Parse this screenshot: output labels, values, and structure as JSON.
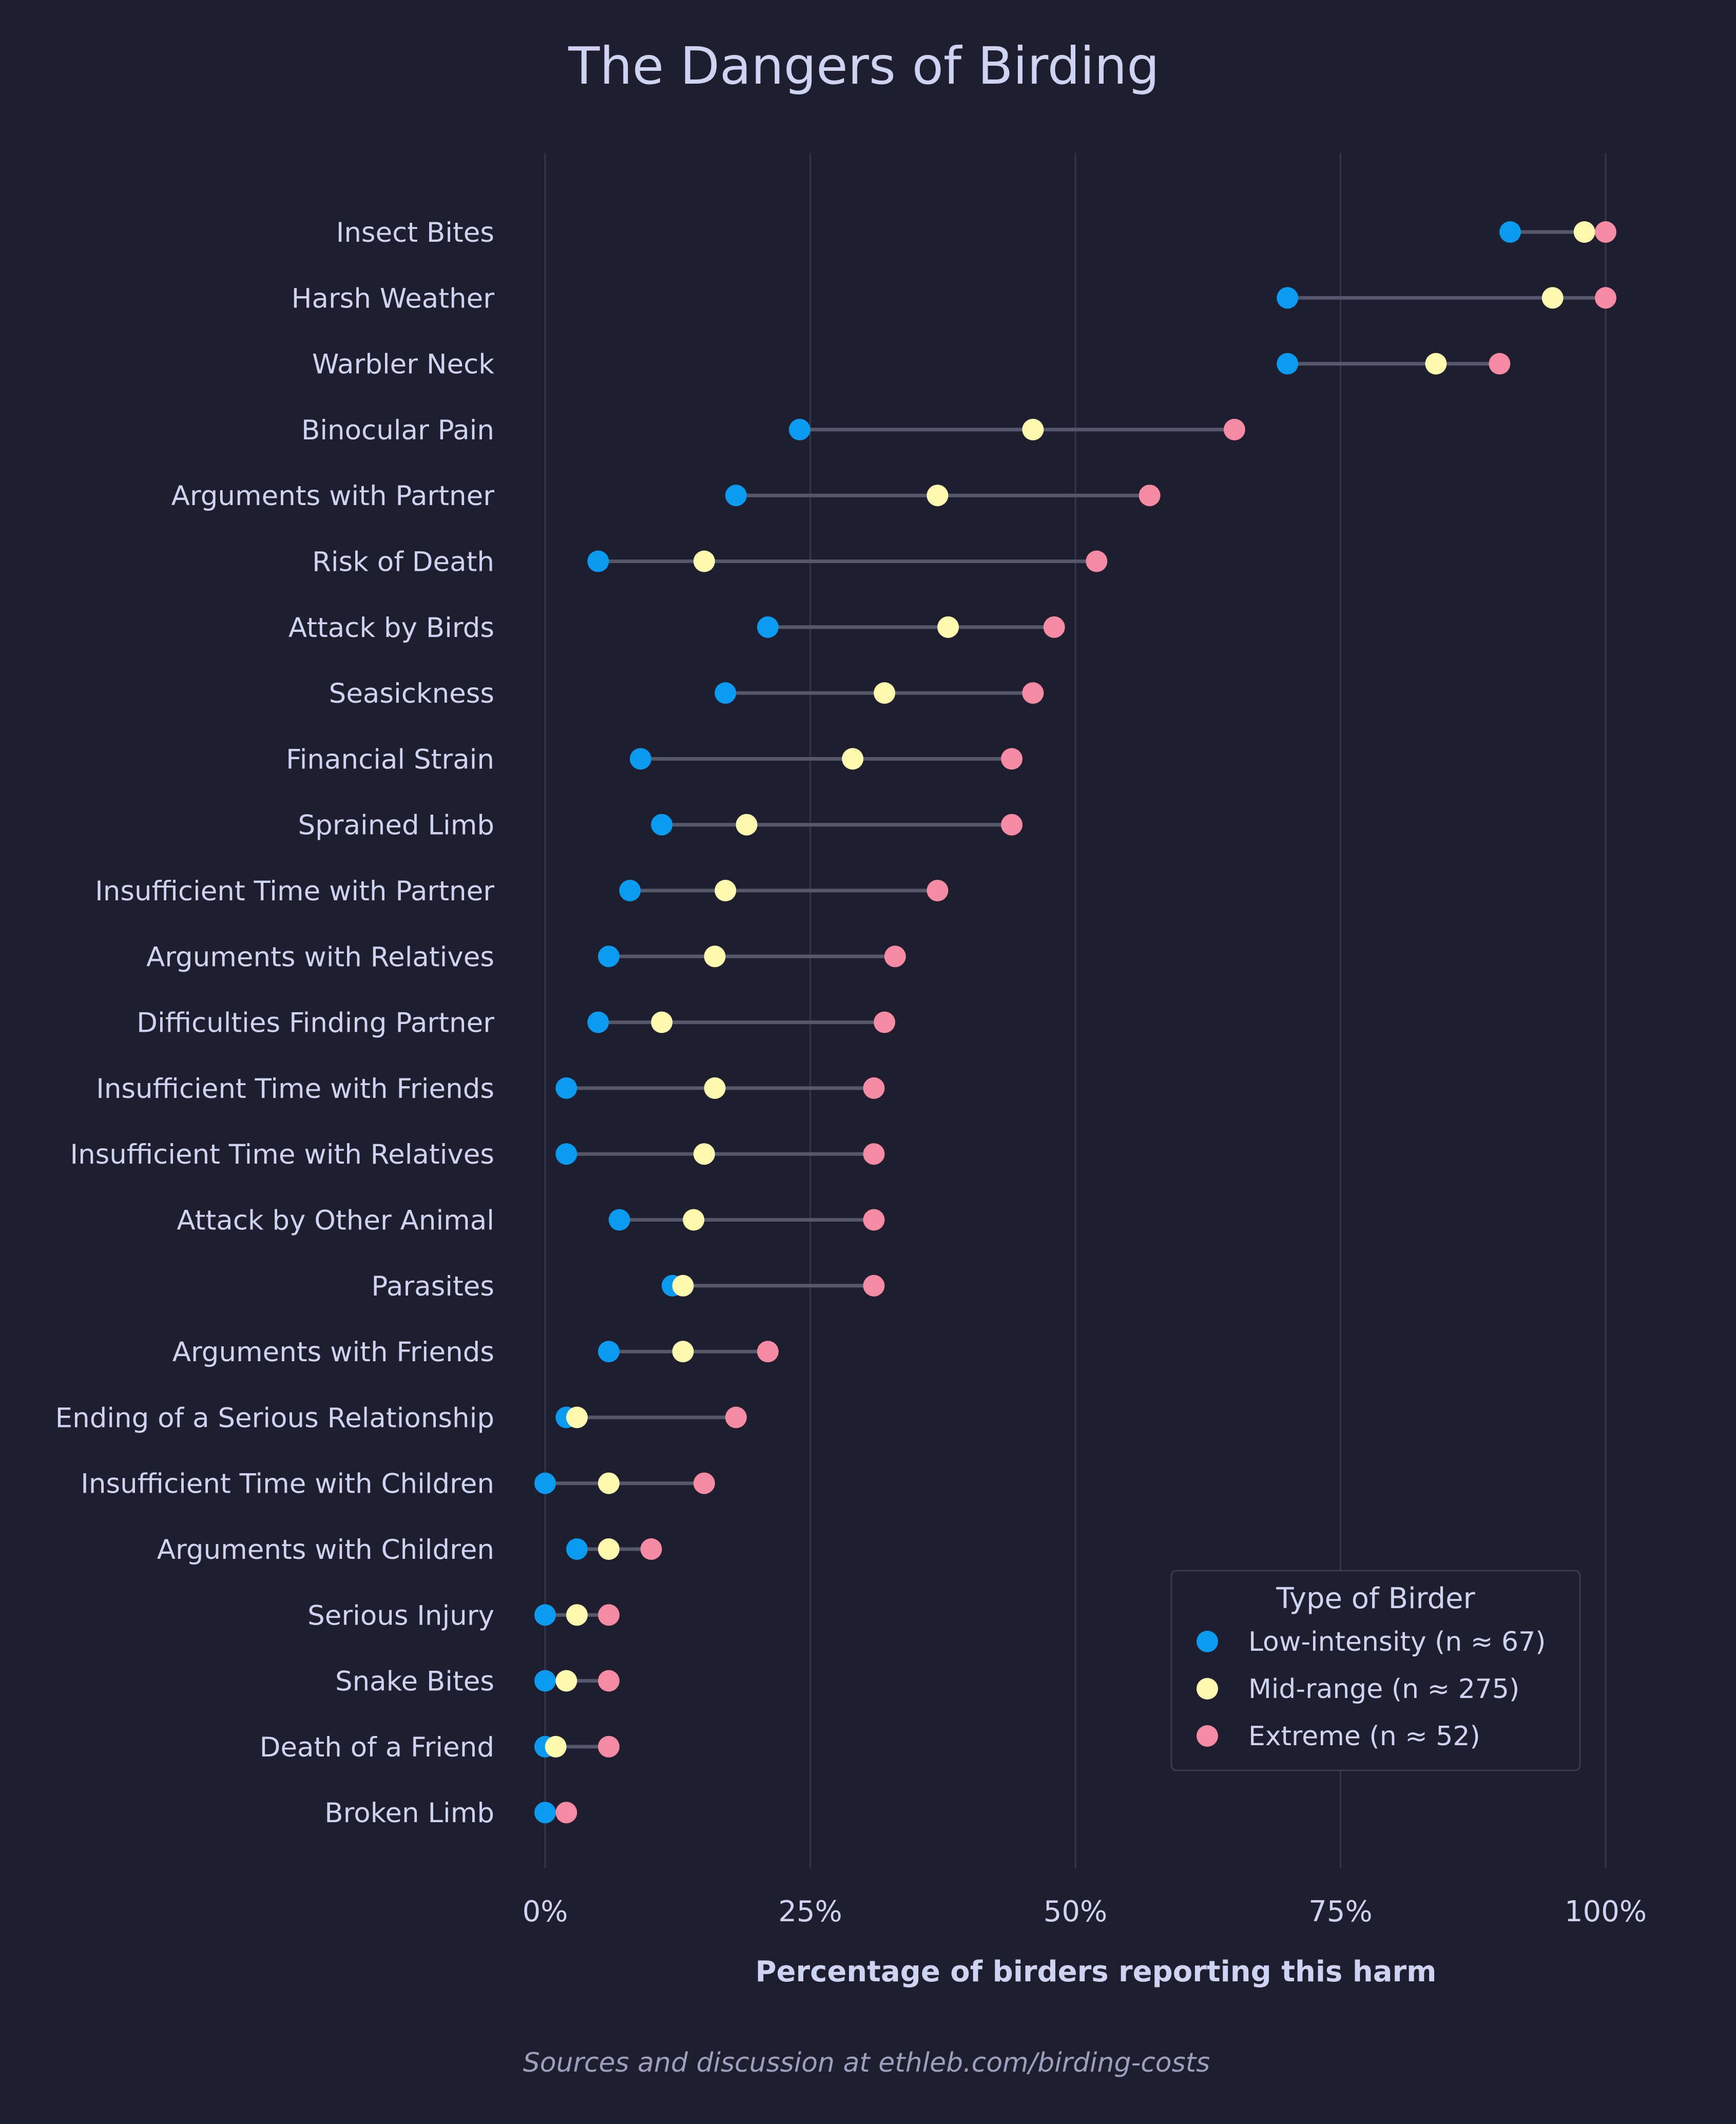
{
  "chart_data": {
    "type": "scatter",
    "title": "The Dangers of Birding",
    "xlabel": "Percentage of birders reporting this harm",
    "footer": "Sources and discussion at ethleb.com/birding-costs",
    "xlim": [
      0,
      100
    ],
    "x_ticks": [
      "0%",
      "25%",
      "50%",
      "75%",
      "100%"
    ],
    "x_tick_values": [
      0,
      25,
      50,
      75,
      100
    ],
    "grid": "vertical",
    "legend": {
      "title": "Type of Birder",
      "placement": "lower-right"
    },
    "categories": [
      "Insect Bites",
      "Harsh Weather",
      "Warbler Neck",
      "Binocular Pain",
      "Arguments with Partner",
      "Risk of Death",
      "Attack by Birds",
      "Seasickness",
      "Financial Strain",
      "Sprained Limb",
      "Insufficient Time with Partner",
      "Arguments with Relatives",
      "Difficulties Finding Partner",
      "Insufficient Time with Friends",
      "Insufficient Time with Relatives",
      "Attack by Other Animal",
      "Parasites",
      "Arguments with Friends",
      "Ending of a Serious Relationship",
      "Insufficient Time with Children",
      "Arguments with Children",
      "Serious Injury",
      "Snake Bites",
      "Death of a Friend",
      "Broken Limb"
    ],
    "series": [
      {
        "name": "Low-intensity  (n ≈ 67)",
        "color": "#0a9af0",
        "values": [
          91,
          70,
          70,
          24,
          18,
          5,
          21,
          17,
          9,
          11,
          8,
          6,
          5,
          2,
          2,
          7,
          12,
          6,
          2,
          0,
          3,
          0,
          0,
          0,
          0
        ]
      },
      {
        "name": "Mid-range  (n ≈ 275)",
        "color": "#fdfab0",
        "values": [
          98,
          95,
          84,
          46,
          37,
          15,
          38,
          32,
          29,
          19,
          17,
          16,
          11,
          16,
          15,
          14,
          13,
          13,
          3,
          6,
          6,
          3,
          2,
          1,
          null
        ]
      },
      {
        "name": "Extreme  (n ≈ 52)",
        "color": "#f58ba3",
        "values": [
          100,
          100,
          90,
          65,
          57,
          52,
          48,
          46,
          44,
          44,
          37,
          33,
          32,
          31,
          31,
          31,
          31,
          21,
          18,
          15,
          10,
          6,
          6,
          6,
          2
        ]
      }
    ]
  }
}
